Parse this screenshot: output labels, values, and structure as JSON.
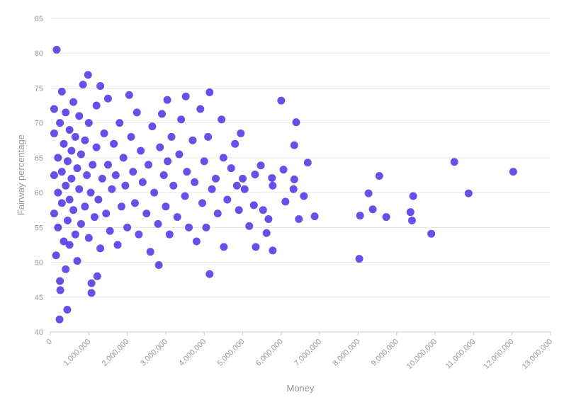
{
  "chart_data": {
    "type": "scatter",
    "x_label": "Money",
    "y_label": "Fairway percentage",
    "color": "#5435e6",
    "grid": true,
    "xlim": [
      0,
      13000000
    ],
    "ylim": [
      40,
      85
    ],
    "xticks": [
      0,
      {
        "value": 1000000,
        "label": "1,000,000"
      },
      {
        "value": 2000000,
        "label": "2,000,000"
      },
      {
        "value": 3000000,
        "label": "3,000,000"
      },
      {
        "value": 4000000,
        "label": "4,000,000"
      },
      {
        "value": 5000000,
        "label": "5,000,000"
      },
      {
        "value": 6000000,
        "label": "6,000,000"
      },
      {
        "value": 7000000,
        "label": "7,000,000"
      },
      {
        "value": 8000000,
        "label": "8,000,000"
      },
      {
        "value": 9000000,
        "label": "9,000,000"
      },
      {
        "value": 10000000,
        "label": "10,000,000"
      },
      {
        "value": 11000000,
        "label": "11,000,000"
      },
      {
        "value": 12000000,
        "label": "12,000,000"
      },
      {
        "value": 13000000,
        "label": "13,000,000"
      }
    ],
    "yticks": [
      40,
      45,
      50,
      55,
      60,
      65,
      70,
      75,
      80,
      85
    ],
    "x": [
      165000,
      12030000,
      10500000,
      10870000,
      9900000,
      9430000,
      9360000,
      9400000,
      8550000,
      8270000,
      8380000,
      8730000,
      8050000,
      8030000,
      6870000,
      6690000,
      6460000,
      6590000,
      6390000,
      6000000,
      6340000,
      6340000,
      6320000,
      6110000,
      6060000,
      5760000,
      5780000,
      5780000,
      5470000,
      5320000,
      5290000,
      5340000,
      5170000,
      5620000,
      5670000,
      5530000,
      4510000,
      4140000,
      4140000,
      440000,
      240000,
      260000,
      980000,
      1070000,
      1070000,
      1220000,
      2820000,
      3520000,
      3040000,
      100000,
      100000,
      100000,
      100000,
      150000,
      200000,
      200000,
      200000,
      250000,
      250000,
      300000,
      300000,
      300000,
      350000,
      350000,
      400000,
      400000,
      400000,
      450000,
      450000,
      500000,
      500000,
      500000,
      550000,
      550000,
      600000,
      600000,
      650000,
      650000,
      700000,
      700000,
      750000,
      750000,
      800000,
      800000,
      850000,
      900000,
      900000,
      950000,
      1000000,
      1000000,
      1050000,
      1100000,
      1150000,
      1200000,
      1200000,
      1250000,
      1300000,
      1300000,
      1350000,
      1400000,
      1450000,
      1500000,
      1500000,
      1550000,
      1600000,
      1650000,
      1700000,
      1750000,
      1800000,
      1850000,
      1900000,
      1950000,
      2000000,
      2050000,
      2100000,
      2150000,
      2200000,
      2250000,
      2300000,
      2350000,
      2400000,
      2500000,
      2550000,
      2600000,
      2650000,
      2700000,
      2800000,
      2850000,
      2900000,
      2950000,
      3000000,
      3050000,
      3100000,
      3150000,
      3200000,
      3300000,
      3350000,
      3400000,
      3500000,
      3550000,
      3600000,
      3700000,
      3750000,
      3800000,
      3900000,
      3950000,
      4000000,
      4050000,
      4100000,
      4200000,
      4300000,
      4350000,
      4450000,
      4500000,
      4600000,
      4700000,
      4800000,
      4850000,
      4900000,
      4950000,
      5000000,
      5050000
    ],
    "values": [
      80.5,
      63.0,
      64.4,
      59.9,
      54.1,
      59.5,
      57.2,
      56.0,
      62.4,
      59.9,
      57.6,
      56.5,
      56.7,
      50.5,
      56.6,
      64.3,
      56.2,
      59.5,
      70.1,
      73.2,
      66.8,
      61.9,
      60.5,
      58.7,
      63.3,
      62.1,
      61.0,
      51.7,
      63.9,
      62.6,
      58.2,
      52.2,
      55.2,
      54.2,
      56.2,
      57.5,
      52.2,
      48.3,
      74.4,
      43.2,
      41.8,
      46.0,
      76.9,
      47.0,
      45.6,
      48.0,
      49.6,
      73.8,
      73.3,
      72.0,
      68.5,
      62.5,
      57.0,
      51.0,
      65.0,
      60.0,
      55.0,
      70.0,
      47.3,
      74.5,
      63.0,
      58.5,
      53.0,
      67.0,
      71.5,
      61.0,
      49.0,
      56.0,
      64.5,
      69.0,
      59.0,
      52.5,
      66.0,
      62.0,
      73.0,
      57.5,
      54.0,
      68.0,
      63.5,
      50.2,
      60.5,
      71.0,
      65.5,
      55.5,
      75.5,
      58.0,
      67.5,
      62.5,
      53.5,
      70.0,
      60.0,
      64.0,
      56.5,
      72.5,
      66.5,
      59.0,
      75.3,
      52.0,
      62.0,
      68.5,
      57.0,
      64.0,
      73.5,
      54.5,
      60.5,
      67.0,
      62.5,
      52.5,
      70.0,
      58.0,
      65.0,
      61.0,
      55.0,
      74.0,
      68.0,
      63.0,
      58.5,
      71.5,
      54.0,
      66.0,
      61.5,
      57.0,
      64.0,
      51.5,
      69.5,
      60.0,
      55.5,
      66.5,
      71.3,
      62.5,
      58.0,
      64.5,
      54.0,
      68.0,
      61.0,
      56.5,
      65.5,
      70.5,
      59.5,
      63.0,
      55.0,
      67.5,
      61.5,
      53.0,
      72.0,
      58.5,
      64.5,
      55.0,
      68.0,
      60.5,
      62.0,
      57.0,
      70.5,
      65.0,
      59.0,
      63.5,
      67.0,
      61.0,
      57.5,
      68.5,
      62.0,
      60.5
    ]
  }
}
